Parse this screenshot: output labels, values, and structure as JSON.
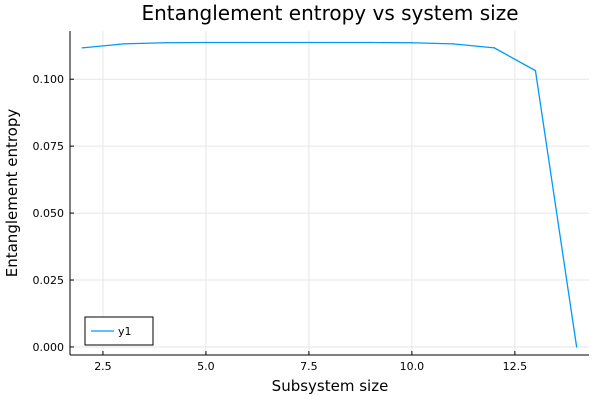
{
  "chart_data": {
    "type": "line",
    "title": "Entanglement entropy vs system size",
    "xlabel": "Subsystem size",
    "ylabel": "Entanglement entropy",
    "xlim": [
      1.7,
      14.3
    ],
    "ylim": [
      -0.003,
      0.118
    ],
    "xticks": [
      2.5,
      5.0,
      7.5,
      10.0,
      12.5
    ],
    "xtick_labels": [
      "2.5",
      "5.0",
      "7.5",
      "10.0",
      "12.5"
    ],
    "yticks": [
      0.0,
      0.025,
      0.05,
      0.075,
      0.1
    ],
    "ytick_labels": [
      "0.000",
      "0.025",
      "0.050",
      "0.075",
      "0.100"
    ],
    "grid": true,
    "legend_position": "bottom-left",
    "series": [
      {
        "name": "y1",
        "color": "#009af9",
        "x": [
          2,
          3,
          4,
          5,
          6,
          7,
          8,
          9,
          10,
          11,
          12,
          13,
          14
        ],
        "y": [
          0.1117,
          0.1132,
          0.1136,
          0.1137,
          0.1137,
          0.1137,
          0.1137,
          0.1137,
          0.1136,
          0.1132,
          0.1117,
          0.1032,
          0.0
        ]
      }
    ]
  }
}
